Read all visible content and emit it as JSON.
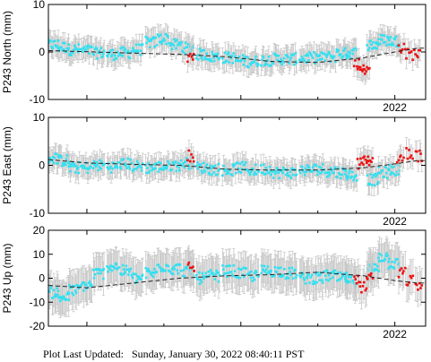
{
  "footer": {
    "label": "Plot Last Updated:",
    "timestamp": "Sunday, January 30, 2022 08:40:11 PST"
  },
  "colors": {
    "series_cyan": "#33e0f0",
    "series_red": "#ee1111",
    "error_bars": "#c8c8c8",
    "trend": "#222222",
    "frame": "#000000"
  },
  "chart_data": [
    {
      "type": "scatter",
      "ylabel": "P243 North (mm)",
      "ylim": [
        -10,
        10
      ],
      "yticks": [
        -10,
        0,
        10
      ],
      "xlim": [
        2019.75,
        2022.2
      ],
      "xticks": [
        {
          "value": 2022.0,
          "label": "2022"
        }
      ],
      "error_bar_mm": 2.2,
      "series": [
        {
          "color": "cyan",
          "x": [
            2019.78,
            2019.85,
            2019.92,
            2020.0,
            2020.08,
            2020.17,
            2020.25,
            2020.33,
            2020.42,
            2020.5,
            2020.58,
            2020.66,
            2020.75,
            2020.83,
            2020.92,
            2021.0,
            2021.08,
            2021.17,
            2021.25,
            2021.33,
            2021.42,
            2021.5,
            2021.58,
            2021.66,
            2021.72,
            2021.86,
            2021.93,
            2022.0
          ],
          "values": [
            1.5,
            1.0,
            0.5,
            0.3,
            -0.2,
            -0.5,
            -0.2,
            0.5,
            2.0,
            2.8,
            1.5,
            0.8,
            -0.5,
            -1.0,
            -1.2,
            -1.8,
            -2.0,
            -1.7,
            -1.5,
            -1.5,
            -1.3,
            -1.2,
            -1.0,
            -0.3,
            -0.2,
            1.5,
            2.5,
            2.3
          ]
        },
        {
          "color": "red",
          "x": [
            2020.68,
            2021.76,
            2021.79,
            2021.82,
            2022.05,
            2022.1,
            2022.15
          ],
          "values": [
            -1.0,
            -2.5,
            -3.5,
            -3.8,
            1.0,
            -0.5,
            -0.3
          ]
        }
      ],
      "trend": {
        "x": [
          2019.75,
          2020.25,
          2020.6,
          2020.9,
          2021.2,
          2021.5,
          2021.8,
          2022.0,
          2022.15
        ],
        "values": [
          0.3,
          -0.2,
          -0.5,
          -1.0,
          -2.0,
          -2.2,
          -1.2,
          0.0,
          0.8
        ]
      }
    },
    {
      "type": "scatter",
      "ylabel": "P243 East (mm)",
      "ylim": [
        -10,
        10
      ],
      "yticks": [
        -10,
        0,
        10
      ],
      "xlim": [
        2019.75,
        2022.2
      ],
      "xticks": [
        {
          "value": 2022.0,
          "label": "2022"
        }
      ],
      "error_bar_mm": 2.2,
      "series": [
        {
          "color": "cyan",
          "x": [
            2019.78,
            2019.85,
            2019.92,
            2020.0,
            2020.08,
            2020.17,
            2020.25,
            2020.33,
            2020.42,
            2020.5,
            2020.58,
            2020.66,
            2020.75,
            2020.83,
            2020.92,
            2021.0,
            2021.08,
            2021.17,
            2021.25,
            2021.33,
            2021.42,
            2021.5,
            2021.58,
            2021.66,
            2021.72,
            2021.86,
            2021.93,
            2022.0
          ],
          "values": [
            1.5,
            1.0,
            -0.5,
            -0.5,
            0.0,
            -0.3,
            0.3,
            -0.2,
            -0.5,
            -0.3,
            0.0,
            0.5,
            -0.5,
            -0.8,
            -1.0,
            -0.5,
            -1.0,
            -0.8,
            -1.5,
            -1.5,
            -1.0,
            -0.8,
            -1.2,
            -1.5,
            -2.0,
            -3.0,
            -1.5,
            -1.0
          ]
        },
        {
          "color": "red",
          "x": [
            2020.68,
            2021.78,
            2021.81,
            2021.84,
            2022.04,
            2022.1,
            2022.16
          ],
          "values": [
            2.0,
            0.5,
            0.8,
            1.0,
            1.5,
            2.5,
            2.0
          ]
        }
      ],
      "trend": {
        "x": [
          2019.75,
          2020.0,
          2020.3,
          2020.6,
          2020.9,
          2021.2,
          2021.5,
          2021.8,
          2022.0,
          2022.15
        ],
        "values": [
          1.2,
          0.5,
          0.2,
          0.0,
          -0.8,
          -1.0,
          -1.0,
          -0.5,
          0.3,
          1.0
        ]
      }
    },
    {
      "type": "scatter",
      "ylabel": "P243 Up (mm)",
      "ylim": [
        -20,
        20
      ],
      "yticks": [
        -20,
        -10,
        0,
        10,
        20
      ],
      "xlim": [
        2019.75,
        2022.2
      ],
      "xticks": [
        {
          "value": 2022.0,
          "label": "2022"
        }
      ],
      "error_bar_mm": 7.0,
      "series": [
        {
          "color": "cyan",
          "x": [
            2019.78,
            2019.85,
            2019.92,
            2020.0,
            2020.08,
            2020.17,
            2020.25,
            2020.33,
            2020.42,
            2020.5,
            2020.58,
            2020.66,
            2020.75,
            2020.83,
            2020.92,
            2021.0,
            2021.08,
            2021.17,
            2021.25,
            2021.33,
            2021.42,
            2021.5,
            2021.58,
            2021.66,
            2021.72,
            2021.86,
            2021.93,
            2022.0
          ],
          "values": [
            -6.0,
            -8.0,
            -5.0,
            -3.0,
            2.0,
            5.0,
            3.0,
            0.0,
            2.0,
            5.0,
            4.0,
            3.0,
            0.0,
            1.0,
            3.0,
            2.0,
            1.0,
            3.0,
            3.0,
            2.0,
            0.0,
            0.0,
            1.0,
            0.0,
            -1.0,
            4.0,
            9.0,
            6.0
          ]
        },
        {
          "color": "red",
          "x": [
            2020.68,
            2021.76,
            2021.8,
            2021.84,
            2022.05,
            2022.1,
            2022.16
          ],
          "values": [
            5.0,
            -1.0,
            -4.0,
            0.0,
            2.0,
            -1.0,
            -3.0
          ]
        }
      ],
      "trend": {
        "x": [
          2019.75,
          2020.0,
          2020.3,
          2020.6,
          2020.9,
          2021.2,
          2021.5,
          2021.8,
          2022.0,
          2022.15
        ],
        "values": [
          -3.0,
          -4.0,
          -2.0,
          0.0,
          1.0,
          1.5,
          2.5,
          1.0,
          -1.0,
          -2.0
        ]
      }
    }
  ]
}
